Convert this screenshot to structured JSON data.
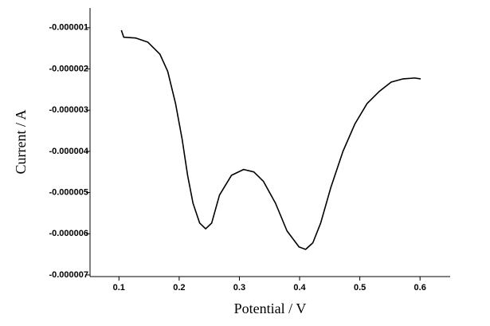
{
  "chart_data": {
    "type": "line",
    "x_label": "Potential / V",
    "y_label": "Current / A",
    "x": [
      0.104,
      0.108,
      0.128,
      0.148,
      0.168,
      0.181,
      0.194,
      0.205,
      0.214,
      0.223,
      0.234,
      0.244,
      0.254,
      0.267,
      0.287,
      0.307,
      0.324,
      0.34,
      0.36,
      0.379,
      0.399,
      0.41,
      0.422,
      0.435,
      0.452,
      0.472,
      0.492,
      0.512,
      0.532,
      0.552,
      0.572,
      0.591,
      0.601
    ],
    "series": [
      {
        "color": "#000000",
        "values": [
          -1.06e-06,
          -1.23e-06,
          -1.25e-06,
          -1.35e-06,
          -1.64e-06,
          -2.06e-06,
          -2.84e-06,
          -3.71e-06,
          -4.58e-06,
          -5.26e-06,
          -5.74e-06,
          -5.88e-06,
          -5.74e-06,
          -5.06e-06,
          -4.58e-06,
          -4.44e-06,
          -4.5e-06,
          -4.73e-06,
          -5.26e-06,
          -5.93e-06,
          -6.32e-06,
          -6.38e-06,
          -6.22e-06,
          -5.74e-06,
          -4.87e-06,
          -4e-06,
          -3.33e-06,
          -2.84e-06,
          -2.55e-06,
          -2.32e-06,
          -2.24e-06,
          -2.22e-06,
          -2.24e-06
        ]
      }
    ],
    "xlim": [
      0.052,
      0.65
    ],
    "ylim": [
      -7.04e-06,
      -5.2e-07
    ],
    "xticks": [
      0.1,
      0.2,
      0.3,
      0.4,
      0.5,
      0.6
    ],
    "yticks": [
      -1e-06,
      -2e-06,
      -3e-06,
      -4e-06,
      -5e-06,
      -6e-06,
      -7e-06
    ]
  }
}
